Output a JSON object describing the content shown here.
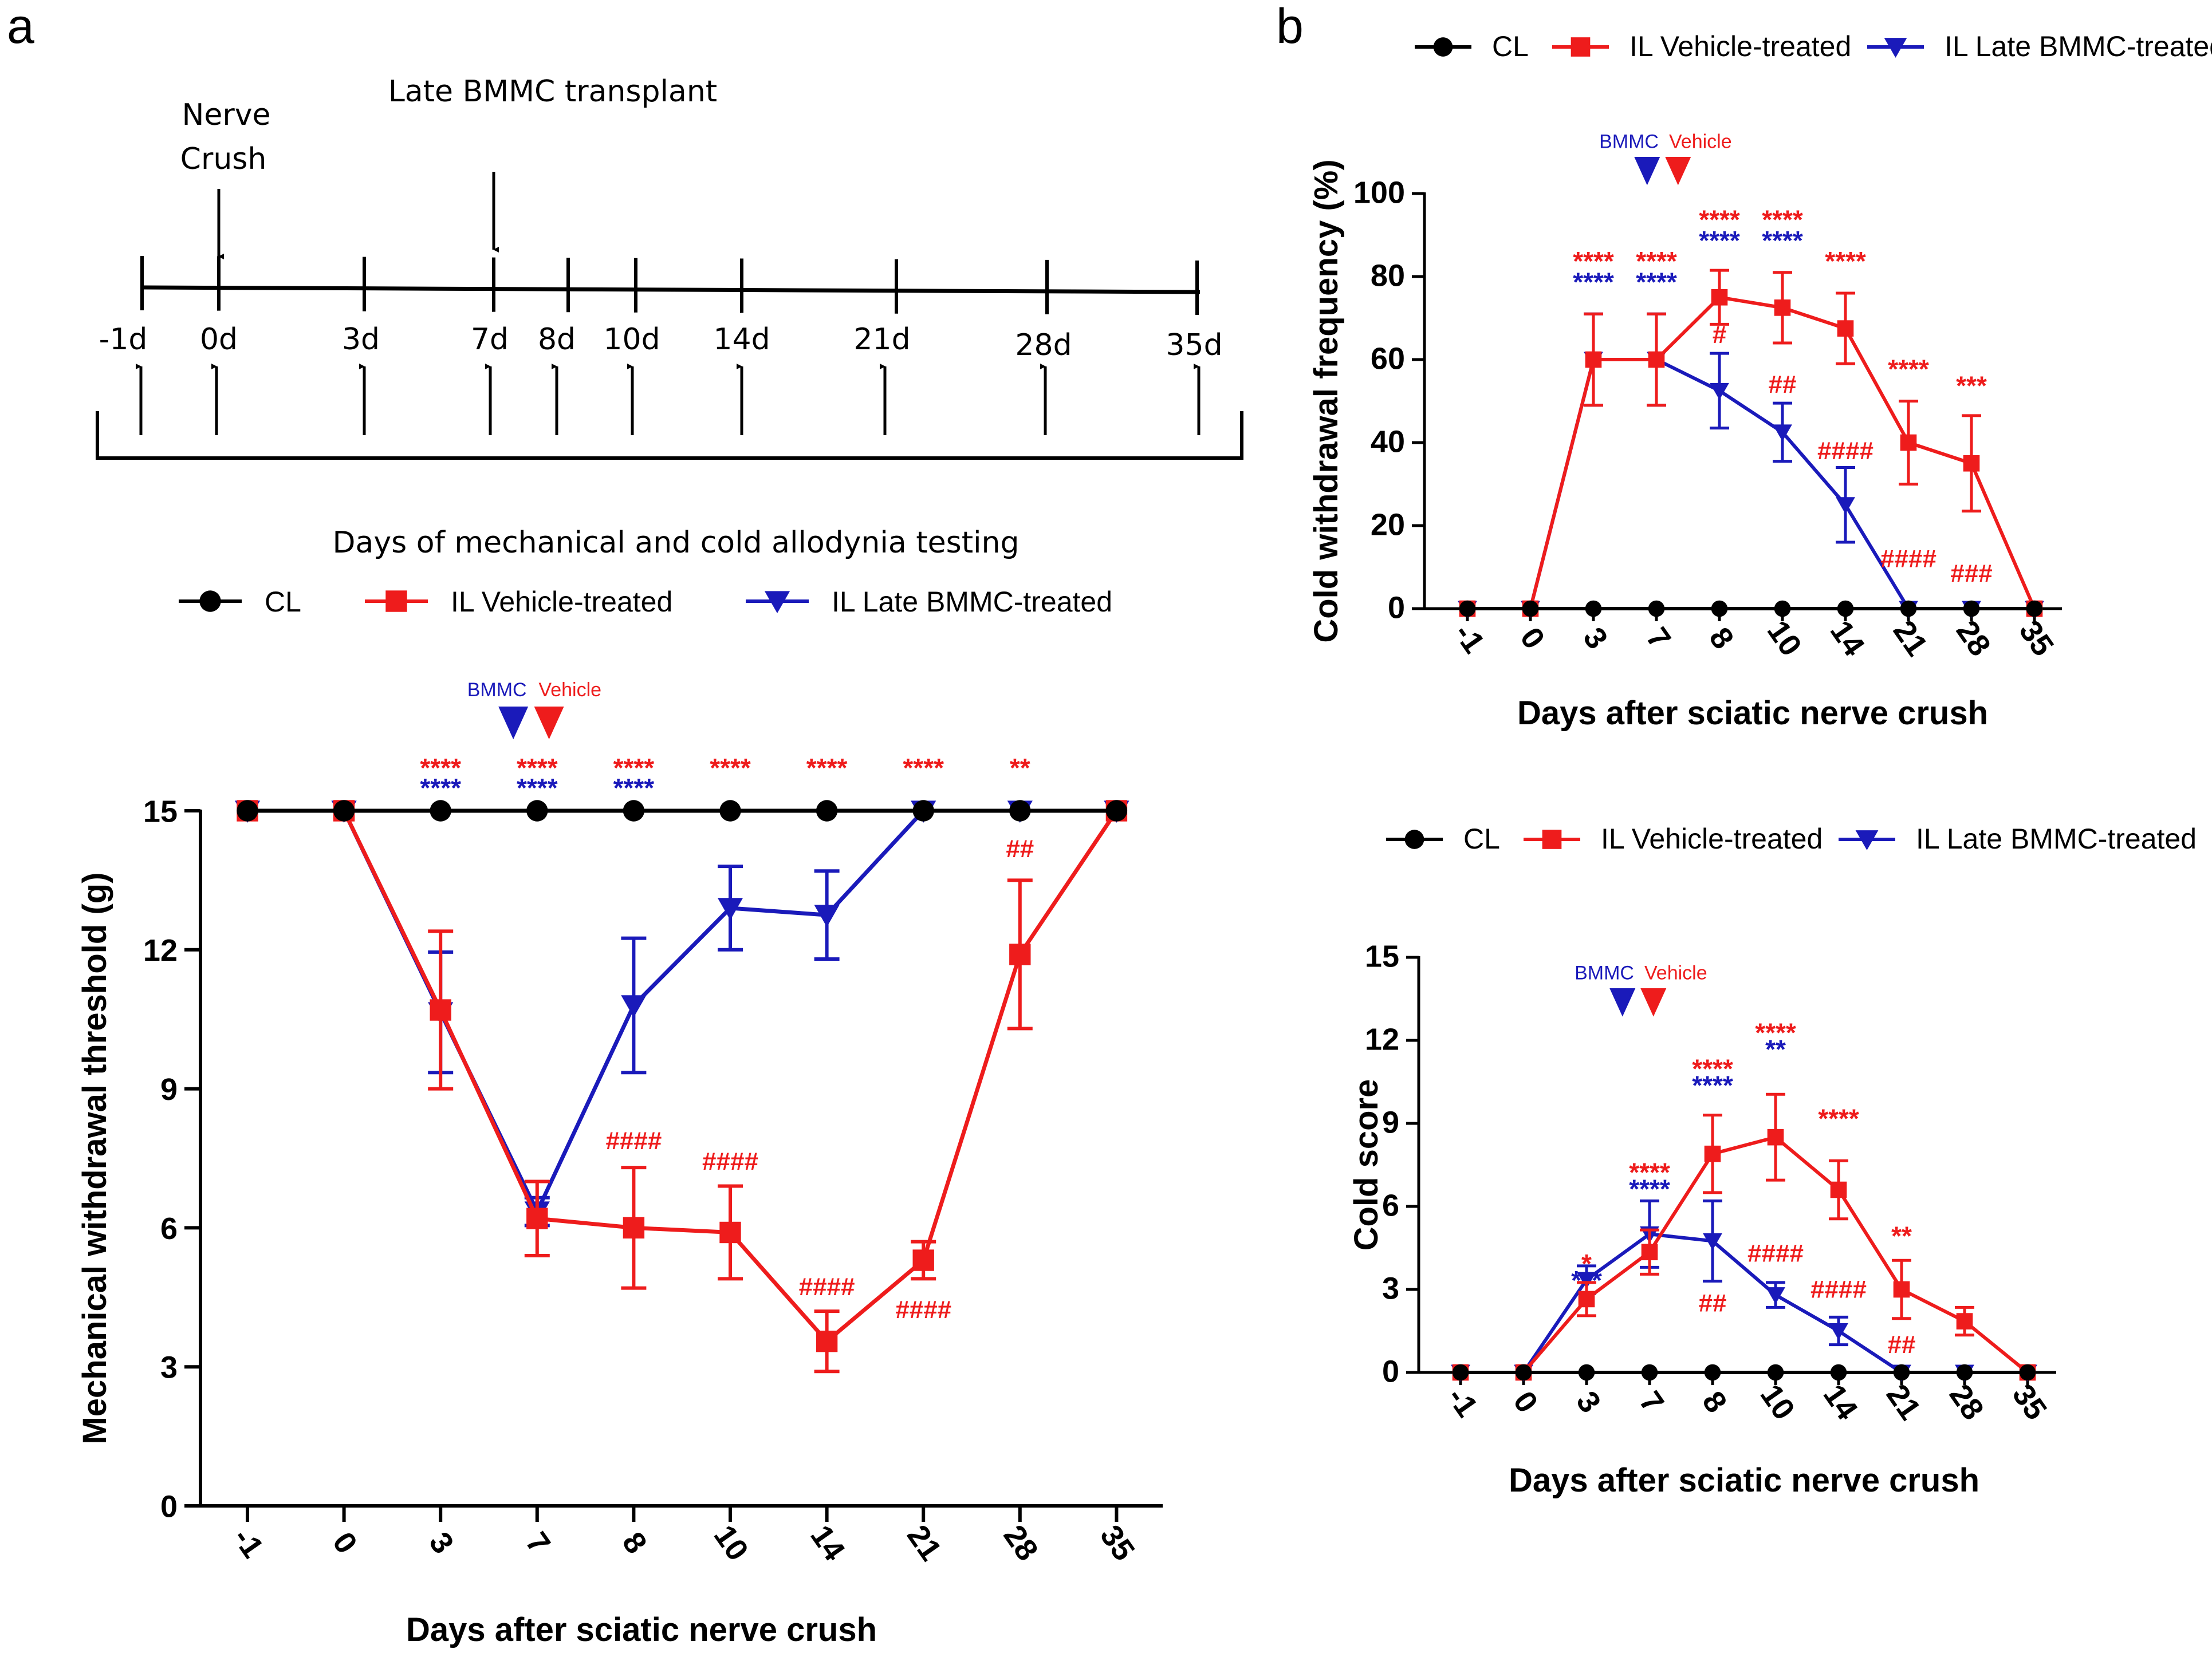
{
  "panels": {
    "a": "a",
    "b": "b"
  },
  "colors": {
    "cl": "#000000",
    "vehicle": "#ee1c1c",
    "bmmc": "#1a1aba"
  },
  "timeline": {
    "top_labels": [
      "Nerve",
      "Crush",
      "Late BMMC transplant"
    ],
    "days": [
      "-1d",
      "0d",
      "3d",
      "7d",
      "8d",
      "10d",
      "14d",
      "21d",
      "28d",
      "35d"
    ],
    "caption": "Days of mechanical and cold allodynia testing"
  },
  "legend": {
    "cl": "CL",
    "vehicle": "IL Vehicle-treated",
    "bmmc": "IL Late BMMC-treated"
  },
  "markers": {
    "bmmc": "BMMC",
    "vehicle": "Vehicle"
  },
  "chart_data": [
    {
      "id": "mechanical",
      "type": "line",
      "ylabel": "Mechanical withdrawal threshold (g)",
      "xlabel": "Days after sciatic nerve crush",
      "categories": [
        "-1",
        "0",
        "3",
        "7",
        "8",
        "10",
        "14",
        "21",
        "28",
        "35"
      ],
      "ylim": [
        0,
        15
      ],
      "yticks": [
        "0",
        "3",
        "6",
        "9",
        "12",
        "15"
      ],
      "series": [
        {
          "key": "cl",
          "values": [
            15,
            15,
            15,
            15,
            15,
            15,
            15,
            15,
            15,
            15
          ],
          "err": [
            0,
            0,
            0,
            0,
            0,
            0,
            0,
            0,
            0,
            0
          ]
        },
        {
          "key": "vehicle",
          "values": [
            15,
            15,
            10.7,
            6.2,
            6.0,
            5.9,
            3.55,
            5.3,
            11.9,
            15
          ],
          "err": [
            0,
            0,
            1.7,
            0.8,
            1.3,
            1.0,
            0.65,
            0.4,
            1.6,
            0
          ]
        },
        {
          "key": "bmmc",
          "values": [
            15,
            15,
            10.65,
            6.35,
            10.8,
            12.9,
            12.75,
            15,
            15,
            15
          ],
          "err": [
            0,
            0,
            1.3,
            0.3,
            1.45,
            0.9,
            0.95,
            0,
            0,
            0
          ]
        }
      ],
      "sig_vehicle": [
        "",
        "",
        "****",
        "****",
        "****",
        "****",
        "****",
        "****",
        "**",
        ""
      ],
      "sig_bmmc": [
        "",
        "",
        "****",
        "****",
        "****",
        "",
        "",
        "",
        "",
        ""
      ],
      "hash": [
        {
          "x": "8",
          "text": "####",
          "y": 7.7
        },
        {
          "x": "10",
          "text": "####",
          "y": 7.25
        },
        {
          "x": "14",
          "text": "####",
          "y": 4.55
        },
        {
          "x": "21",
          "text": "####",
          "y": 4.05
        },
        {
          "x": "28",
          "text": "##",
          "y": 14.0
        }
      ]
    },
    {
      "id": "cold-frequency",
      "type": "line",
      "ylabel": "Cold withdrawal frequency (%)",
      "xlabel": "Days after sciatic nerve crush",
      "categories": [
        "-1",
        "0",
        "3",
        "7",
        "8",
        "10",
        "14",
        "21",
        "28",
        "35"
      ],
      "ylim": [
        0,
        100
      ],
      "yticks": [
        "0",
        "20",
        "40",
        "60",
        "80",
        "100"
      ],
      "series": [
        {
          "key": "cl",
          "values": [
            0,
            0,
            0,
            0,
            0,
            0,
            0,
            0,
            0,
            0
          ],
          "err": [
            0,
            0,
            0,
            0,
            0,
            0,
            0,
            0,
            0,
            0
          ]
        },
        {
          "key": "vehicle",
          "values": [
            0,
            0,
            60,
            60,
            75,
            72.5,
            67.5,
            40,
            35,
            0
          ],
          "err": [
            0,
            0,
            11,
            11,
            6.5,
            8.5,
            8.5,
            10,
            11.5,
            0
          ]
        },
        {
          "key": "bmmc",
          "values": [
            0,
            0,
            60,
            60,
            52.5,
            42.5,
            25,
            0,
            0,
            0
          ],
          "err": [
            0,
            0,
            11,
            11,
            9,
            7,
            9,
            0,
            0,
            0
          ]
        }
      ],
      "sig_vehicle": [
        "",
        "",
        "****",
        "****",
        "****",
        "****",
        "****",
        "****",
        "***",
        ""
      ],
      "sig_bmmc": [
        "",
        "",
        "****",
        "****",
        "****",
        "****",
        "",
        "",
        "",
        ""
      ],
      "hash": [
        {
          "x": "8",
          "text": "#",
          "y": 64
        },
        {
          "x": "10",
          "text": "##",
          "y": 52
        },
        {
          "x": "14",
          "text": "####",
          "y": 36
        },
        {
          "x": "21",
          "text": "####",
          "y": 10
        },
        {
          "x": "28",
          "text": "###",
          "y": 6.5
        }
      ]
    },
    {
      "id": "cold-score",
      "type": "line",
      "ylabel": "Cold score",
      "xlabel": "Days after sciatic nerve crush",
      "categories": [
        "-1",
        "0",
        "3",
        "7",
        "8",
        "10",
        "14",
        "21",
        "28",
        "35"
      ],
      "ylim": [
        0,
        15
      ],
      "yticks": [
        "0",
        "3",
        "6",
        "9",
        "12",
        "15"
      ],
      "series": [
        {
          "key": "cl",
          "values": [
            0,
            0,
            0,
            0,
            0,
            0,
            0,
            0,
            0,
            0
          ],
          "err": [
            0,
            0,
            0,
            0,
            0,
            0,
            0,
            0,
            0,
            0
          ]
        },
        {
          "key": "vehicle",
          "values": [
            0,
            0,
            2.65,
            4.35,
            7.9,
            8.5,
            6.6,
            3.0,
            1.85,
            0
          ],
          "err": [
            0,
            0,
            0.6,
            0.8,
            1.4,
            1.55,
            1.05,
            1.05,
            0.5,
            0
          ]
        },
        {
          "key": "bmmc",
          "values": [
            0,
            0,
            3.35,
            5.0,
            4.75,
            2.8,
            1.5,
            0,
            0,
            0
          ],
          "err": [
            0,
            0,
            0.5,
            1.2,
            1.45,
            0.45,
            0.5,
            0,
            0,
            0
          ]
        }
      ],
      "sig_vehicle": [
        "",
        "",
        "*",
        "****",
        "****",
        "****",
        "****",
        "**",
        "",
        ""
      ],
      "sig_bmmc": [
        "",
        "",
        "***",
        "****",
        "****",
        "**",
        "",
        "",
        "",
        ""
      ],
      "hash": [
        {
          "x": "8",
          "text": "##",
          "y": 2.2
        },
        {
          "x": "10",
          "text": "####",
          "y": 4.0
        },
        {
          "x": "14",
          "text": "####",
          "y": 2.7
        },
        {
          "x": "21",
          "text": "##",
          "y": 0.7
        }
      ]
    }
  ]
}
